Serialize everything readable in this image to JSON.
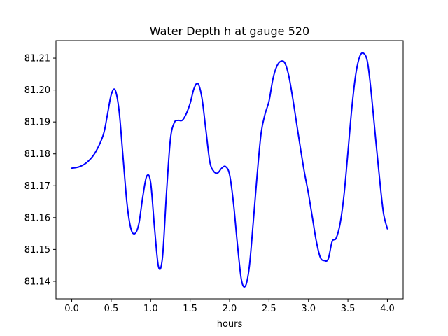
{
  "chart_data": {
    "type": "line",
    "title": "Water Depth h at gauge 520",
    "xlabel": "hours",
    "ylabel": "",
    "xlim": [
      -0.2,
      4.2
    ],
    "ylim": [
      81.1345,
      81.2155
    ],
    "xticks": [
      0.0,
      0.5,
      1.0,
      1.5,
      2.0,
      2.5,
      3.0,
      3.5,
      4.0
    ],
    "xtick_labels": [
      "0.0",
      "0.5",
      "1.0",
      "1.5",
      "2.0",
      "2.5",
      "3.0",
      "3.5",
      "4.0"
    ],
    "yticks": [
      81.14,
      81.15,
      81.16,
      81.17,
      81.18,
      81.19,
      81.2,
      81.21
    ],
    "ytick_labels": [
      "81.14",
      "81.15",
      "81.16",
      "81.17",
      "81.18",
      "81.19",
      "81.20",
      "81.21"
    ],
    "grid": false,
    "series": [
      {
        "color": "#0000ff",
        "x": [
          0.0,
          0.1,
          0.2,
          0.3,
          0.4,
          0.45,
          0.5,
          0.55,
          0.6,
          0.65,
          0.7,
          0.75,
          0.8,
          0.85,
          0.9,
          0.95,
          1.0,
          1.05,
          1.1,
          1.15,
          1.2,
          1.25,
          1.3,
          1.35,
          1.4,
          1.45,
          1.5,
          1.55,
          1.6,
          1.65,
          1.7,
          1.75,
          1.8,
          1.85,
          1.9,
          1.95,
          2.0,
          2.05,
          2.1,
          2.15,
          2.2,
          2.25,
          2.3,
          2.35,
          2.4,
          2.45,
          2.5,
          2.55,
          2.6,
          2.65,
          2.7,
          2.75,
          2.8,
          2.85,
          2.9,
          2.95,
          3.0,
          3.05,
          3.1,
          3.15,
          3.2,
          3.25,
          3.3,
          3.35,
          3.4,
          3.45,
          3.5,
          3.55,
          3.6,
          3.65,
          3.7,
          3.75,
          3.8,
          3.85,
          3.9,
          3.95,
          4.0
        ],
        "y": [
          81.1755,
          81.176,
          81.1775,
          81.1805,
          81.186,
          81.192,
          81.1985,
          81.2,
          81.1935,
          81.179,
          81.1645,
          81.1565,
          81.155,
          81.158,
          81.1665,
          81.173,
          81.171,
          81.1565,
          81.1445,
          81.1475,
          81.1675,
          81.1845,
          81.1898,
          81.1905,
          81.1905,
          81.1925,
          81.1958,
          81.2005,
          81.202,
          81.1975,
          81.1875,
          81.1775,
          81.1745,
          81.174,
          81.1755,
          81.176,
          81.1735,
          81.1645,
          81.1515,
          81.1405,
          81.1385,
          81.1445,
          81.1585,
          81.1735,
          81.1865,
          81.1925,
          81.1965,
          81.2035,
          81.2075,
          81.209,
          81.2085,
          81.2045,
          81.1975,
          81.1895,
          81.1815,
          81.174,
          81.1675,
          81.16,
          81.1525,
          81.1475,
          81.1465,
          81.147,
          81.1525,
          81.1535,
          81.158,
          81.167,
          81.1805,
          81.1945,
          81.205,
          81.2105,
          81.2115,
          81.2085,
          81.198,
          81.185,
          81.1725,
          81.1615,
          81.1565
        ]
      }
    ]
  }
}
